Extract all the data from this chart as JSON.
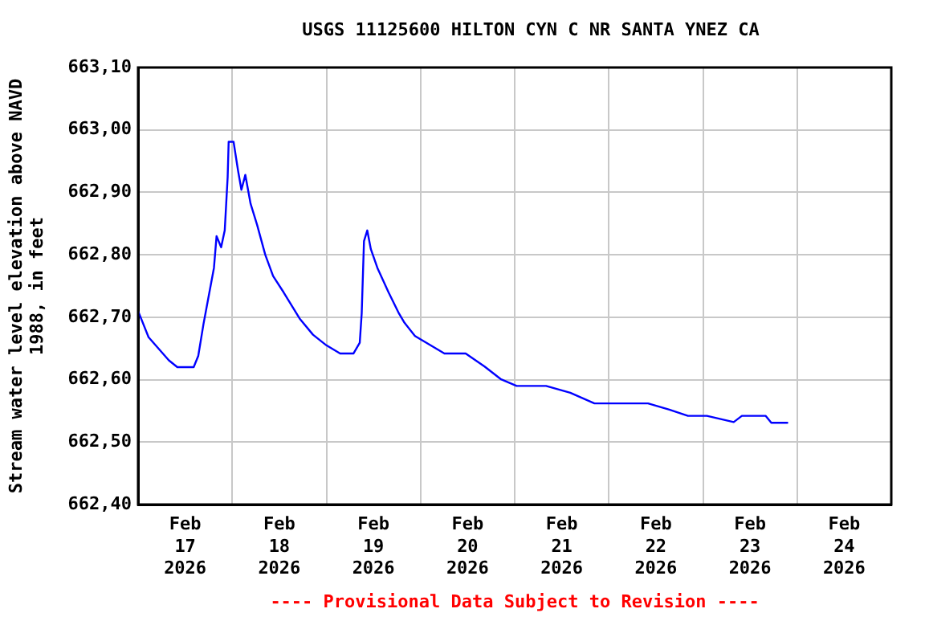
{
  "chart_data": {
    "type": "line",
    "title": "USGS 11125600 HILTON CYN C NR SANTA YNEZ CA",
    "ylabel": "Stream water level elevation above NAVD 1988, in feet",
    "annotations": [
      "---- Provisional Data Subject to Revision ----"
    ],
    "x": [
      "2026-02-17T00:00",
      "2026-02-17T02:40",
      "2026-02-17T07:50",
      "2026-02-17T10:00",
      "2026-02-17T14:10",
      "2026-02-17T15:20",
      "2026-02-17T16:40",
      "2026-02-17T19:20",
      "2026-02-17T20:00",
      "2026-02-17T21:10",
      "2026-02-17T22:05",
      "2026-02-17T22:50",
      "2026-02-17T23:05",
      "2026-02-18T00:20",
      "2026-02-18T01:30",
      "2026-02-18T02:20",
      "2026-02-18T03:20",
      "2026-02-18T04:40",
      "2026-02-18T06:20",
      "2026-02-18T08:25",
      "2026-02-18T10:25",
      "2026-02-18T13:05",
      "2026-02-18T17:10",
      "2026-02-18T20:35",
      "2026-02-19T00:00",
      "2026-02-19T03:30",
      "2026-02-19T06:55",
      "2026-02-19T08:30",
      "2026-02-19T09:00",
      "2026-02-19T09:35",
      "2026-02-19T10:25",
      "2026-02-19T11:20",
      "2026-02-19T13:00",
      "2026-02-19T15:50",
      "2026-02-19T18:30",
      "2026-02-19T19:55",
      "2026-02-19T22:35",
      "2026-02-20T03:25",
      "2026-02-20T06:05",
      "2026-02-20T11:30",
      "2026-02-20T16:20",
      "2026-02-20T20:25",
      "2026-02-21T00:30",
      "2026-02-21T08:00",
      "2026-02-21T14:10",
      "2026-02-21T20:20",
      "2026-02-22T10:00",
      "2026-02-22T15:25",
      "2026-02-22T20:10",
      "2026-02-23T01:00",
      "2026-02-23T07:50",
      "2026-02-23T09:55",
      "2026-02-23T16:00",
      "2026-02-23T17:25",
      "2026-02-23T21:30"
    ],
    "series": [
      {
        "color": "#0000ff",
        "values": [
          662.71,
          662.668,
          662.631,
          662.62,
          662.62,
          662.638,
          662.689,
          662.779,
          662.83,
          662.812,
          662.839,
          662.925,
          662.981,
          662.981,
          662.934,
          662.904,
          662.928,
          662.882,
          662.848,
          662.8,
          662.766,
          662.74,
          662.698,
          662.672,
          662.655,
          662.642,
          662.642,
          662.659,
          662.706,
          662.822,
          662.839,
          662.809,
          662.779,
          662.74,
          662.706,
          662.691,
          662.67,
          662.652,
          662.642,
          662.642,
          662.621,
          662.601,
          662.59,
          662.59,
          662.579,
          662.562,
          662.562,
          662.552,
          662.542,
          662.542,
          662.532,
          662.542,
          662.542,
          662.531,
          662.531
        ]
      }
    ],
    "xlim": [
      "2026-02-17T00:00",
      "2026-02-25T00:00"
    ],
    "xticks": [
      {
        "value": "2026-02-17T12:00",
        "label": "Feb\n17\n2026"
      },
      {
        "value": "2026-02-18T00:00",
        "label": null
      },
      {
        "value": "2026-02-18T12:00",
        "label": "Feb\n18\n2026"
      },
      {
        "value": "2026-02-19T00:00",
        "label": null
      },
      {
        "value": "2026-02-19T12:00",
        "label": "Feb\n19\n2026"
      },
      {
        "value": "2026-02-20T00:00",
        "label": null
      },
      {
        "value": "2026-02-20T12:00",
        "label": "Feb\n20\n2026"
      },
      {
        "value": "2026-02-21T00:00",
        "label": null
      },
      {
        "value": "2026-02-21T12:00",
        "label": "Feb\n21\n2026"
      },
      {
        "value": "2026-02-22T00:00",
        "label": null
      },
      {
        "value": "2026-02-22T12:00",
        "label": "Feb\n22\n2026"
      },
      {
        "value": "2026-02-23T00:00",
        "label": null
      },
      {
        "value": "2026-02-23T12:00",
        "label": "Feb\n23\n2026"
      },
      {
        "value": "2026-02-24T00:00",
        "label": null
      },
      {
        "value": "2026-02-24T12:00",
        "label": "Feb\n24\n2026"
      }
    ],
    "ylim": [
      662.4,
      663.1
    ],
    "yticks": [
      {
        "value": 662.4,
        "label": "662,40"
      },
      {
        "value": 662.5,
        "label": "662,50"
      },
      {
        "value": 662.6,
        "label": "662,60"
      },
      {
        "value": 662.7,
        "label": "662,70"
      },
      {
        "value": 662.8,
        "label": "662,80"
      },
      {
        "value": 662.9,
        "label": "662,90"
      },
      {
        "value": 663.0,
        "label": "663,00"
      },
      {
        "value": 663.1,
        "label": "663,10"
      }
    ],
    "grid": true,
    "legend": false,
    "marker": "none",
    "line_style": "solid"
  }
}
